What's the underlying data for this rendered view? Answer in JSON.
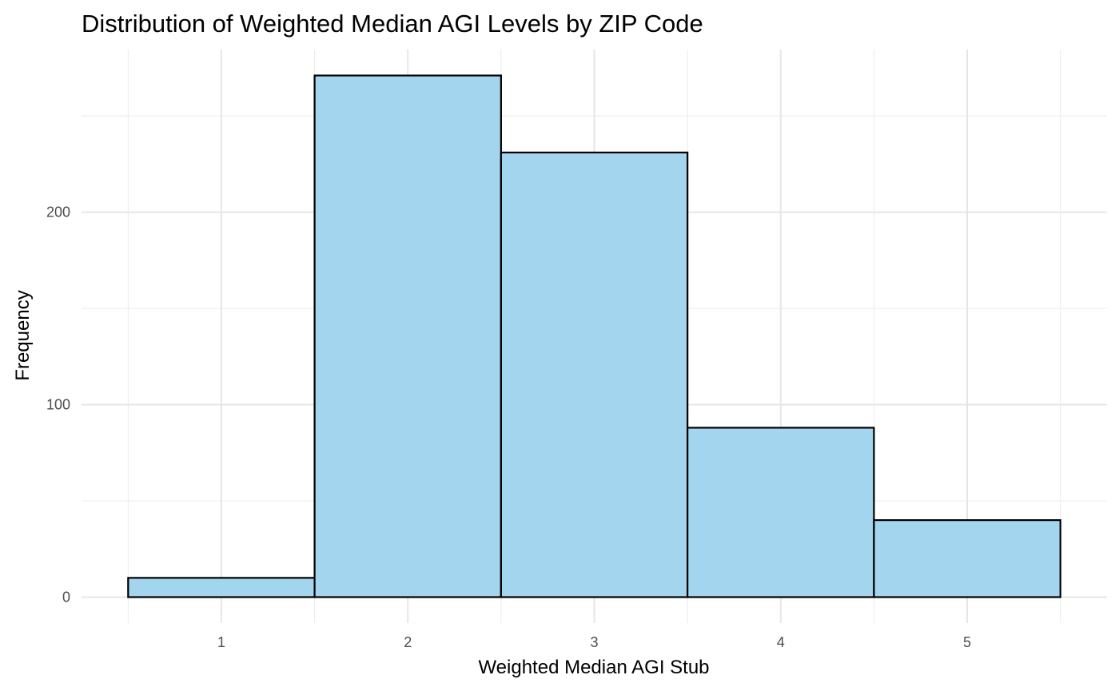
{
  "chart_data": {
    "type": "histogram",
    "title": "Distribution of Weighted Median AGI Levels by ZIP Code",
    "xlabel": "Weighted Median AGI Stub",
    "ylabel": "Frequency",
    "bins": [
      {
        "x": 1,
        "value": 10
      },
      {
        "x": 2,
        "value": 271
      },
      {
        "x": 3,
        "value": 231
      },
      {
        "x": 4,
        "value": 88
      },
      {
        "x": 5,
        "value": 40
      }
    ],
    "bin_width": 1,
    "xlim": [
      0.5,
      5.5
    ],
    "ylim": [
      0,
      271
    ],
    "x_ticks": [
      "1",
      "2",
      "3",
      "4",
      "5"
    ],
    "y_ticks": [
      "0",
      "100",
      "200"
    ],
    "grid": true,
    "legend": "none",
    "bar_fill": "#a3d5ee",
    "bar_stroke": "#000000"
  }
}
